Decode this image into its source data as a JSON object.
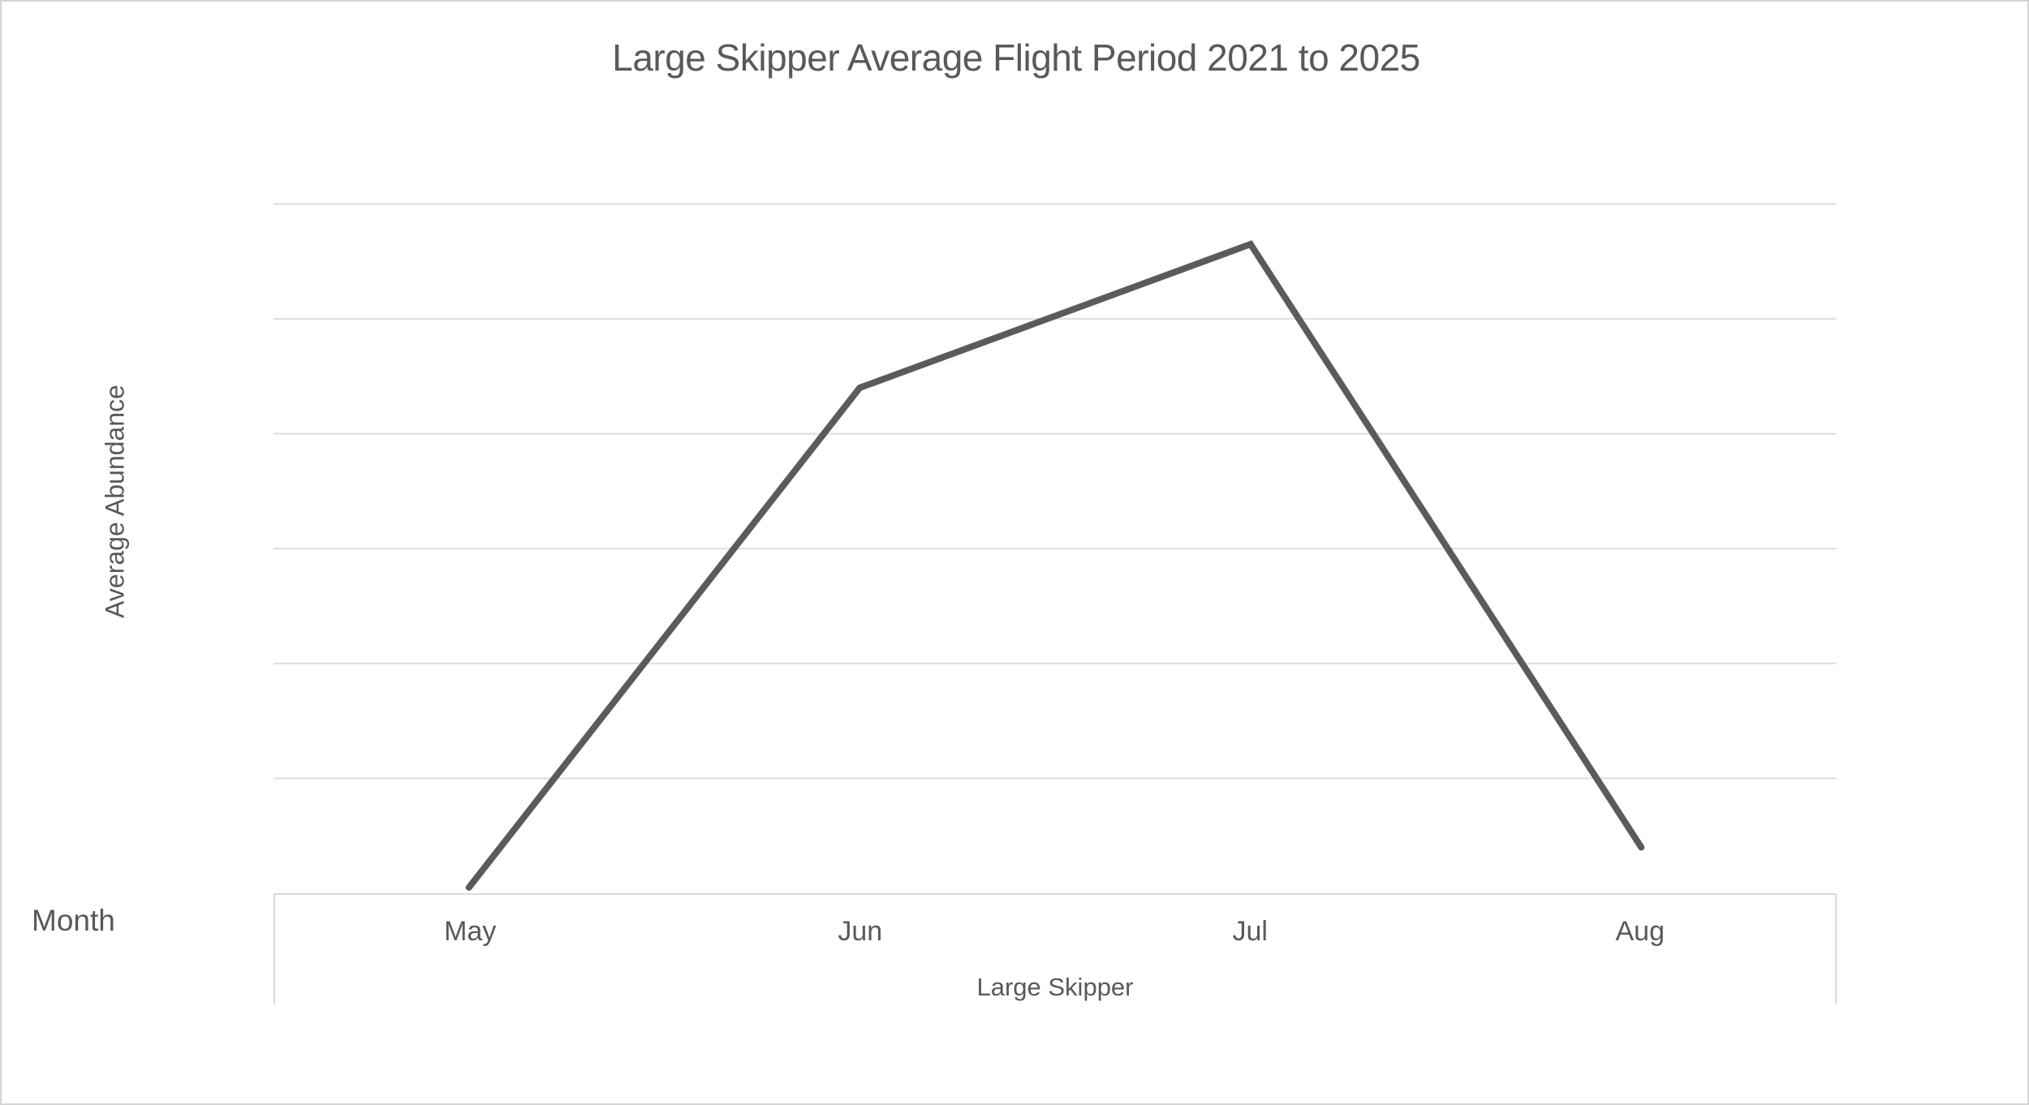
{
  "title": "Large Skipper Average Flight Period 2021 to 2025",
  "y_axis": {
    "label": "Average Abundance",
    "tick_labels": []
  },
  "x_axis": {
    "side_label": "Month",
    "title": "Large Skipper"
  },
  "colors": {
    "line": "#5b5b5b",
    "gridline": "#dedede",
    "axis_border": "#d9d9d9",
    "text": "#595959",
    "frame_border": "#d5d5d5",
    "background": "#ffffff"
  },
  "chart_data": {
    "type": "line",
    "title": "Large Skipper Average Flight Period 2021 to 2025",
    "xlabel": "Large Skipper",
    "ylabel": "Average Abundance",
    "categories": [
      "May",
      "Jun",
      "Jul",
      "Aug"
    ],
    "series": [
      {
        "name": "Large Skipper",
        "values": [
          0.05,
          4.4,
          5.65,
          0.4
        ]
      }
    ],
    "value_units": "relative gridline units (y axis has no tick labels; 1 unit = 1 gridline interval)",
    "ylim": [
      0,
      6
    ],
    "y_gridlines": 6,
    "grid": "horizontal",
    "legend": "none",
    "markers": false
  }
}
